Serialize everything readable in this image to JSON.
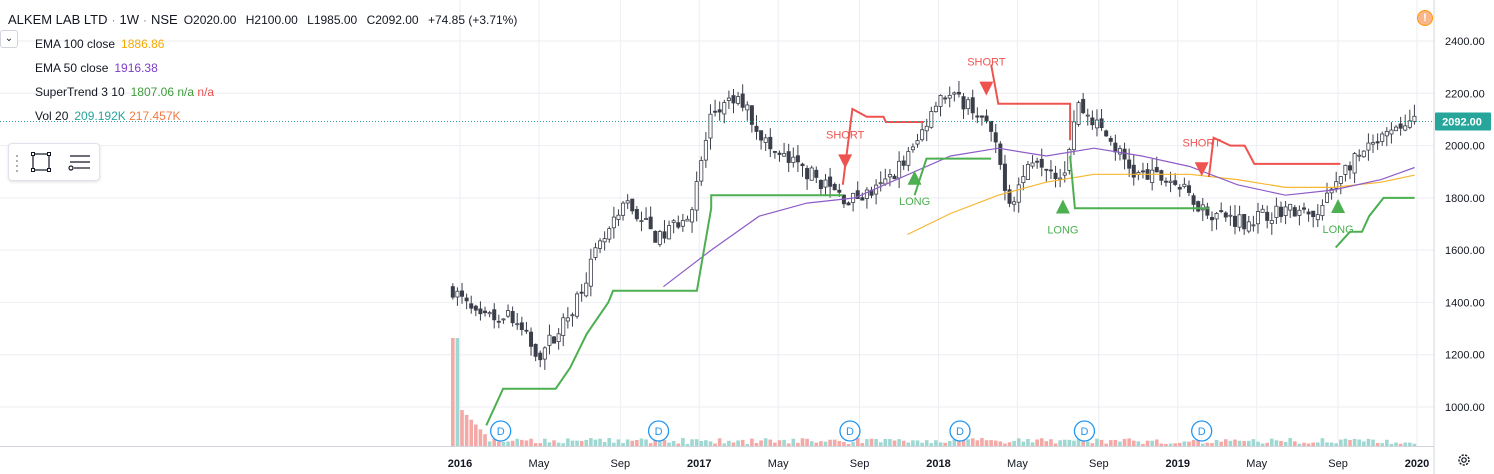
{
  "symbol": {
    "name": "ALKEM LAB LTD",
    "interval": "1W",
    "exchange": "NSE"
  },
  "ohlc": {
    "open": "O2020.00",
    "high": "H2100.00",
    "low": "L1985.00",
    "close": "C2092.00",
    "change": "+74.85 (+3.71%)"
  },
  "indicators": [
    {
      "name": "EMA 100 close",
      "v1": "1886.86",
      "v2": "",
      "v3": "",
      "c1": "#f7a900"
    },
    {
      "name": "EMA 50 close",
      "v1": "1916.38",
      "v2": "",
      "v3": "",
      "c1": "#7b3fc6"
    },
    {
      "name": "SuperTrend 3 10",
      "v1": "1807.06",
      "v2": "n/a",
      "v3": "n/a",
      "c1": "#3d9b3a",
      "c2": "#3d9b3a",
      "c3": "#e85050"
    },
    {
      "name": "Vol 20",
      "v1": "209.192K",
      "v2": "217.457K",
      "v3": "",
      "c1": "#26a69a",
      "c2": "#f07a45"
    }
  ],
  "price_tag": "2092.00",
  "colors": {
    "up": "#26a69a",
    "down": "#ef5350",
    "candle": "#3b3f4a",
    "st_up": "#4caf50",
    "st_down": "#ef5350",
    "ema100": "#f7b731",
    "ema50": "#8e5cc8",
    "grid": "#eceef2",
    "vol_up": "#9fd8d2",
    "vol_down": "#f4a9a7",
    "events": "#2196f3"
  },
  "chart_data": {
    "type": "candlestick",
    "x_ticks": [
      "2016",
      "May",
      "Sep",
      "2017",
      "May",
      "Sep",
      "2018",
      "May",
      "Sep",
      "2019",
      "May",
      "Sep",
      "2020"
    ],
    "y_ticks": [
      "1000.00",
      "1200.00",
      "1400.00",
      "1600.00",
      "1800.00",
      "2000.00",
      "2200.00",
      "2400.00"
    ],
    "ylim": [
      860,
      2480
    ],
    "x_range_years": [
      2016.0,
      2020.0
    ],
    "last_price": 2092,
    "signals": [
      {
        "label": "SHORT",
        "t": 2017.61,
        "dir": "short"
      },
      {
        "label": "LONG",
        "t": 2017.9,
        "dir": "long"
      },
      {
        "label": "SHORT",
        "t": 2018.2,
        "dir": "short"
      },
      {
        "label": "LONG",
        "t": 2018.52,
        "dir": "long"
      },
      {
        "label": "SHORT",
        "t": 2019.1,
        "dir": "short"
      },
      {
        "label": "LONG",
        "t": 2019.67,
        "dir": "long"
      }
    ],
    "events": [
      {
        "label": "D",
        "t": 2016.17
      },
      {
        "label": "D",
        "t": 2016.83
      },
      {
        "label": "D",
        "t": 2017.63
      },
      {
        "label": "D",
        "t": 2018.09
      },
      {
        "label": "D",
        "t": 2018.61
      },
      {
        "label": "D",
        "t": 2019.1
      }
    ],
    "key_prices": [
      {
        "t": 2015.97,
        "p": 1450
      },
      {
        "t": 2016.08,
        "p": 1330
      },
      {
        "t": 2016.2,
        "p": 1360
      },
      {
        "t": 2016.33,
        "p": 1200
      },
      {
        "t": 2016.45,
        "p": 1340
      },
      {
        "t": 2016.57,
        "p": 1590
      },
      {
        "t": 2016.7,
        "p": 1780
      },
      {
        "t": 2016.83,
        "p": 1640
      },
      {
        "t": 2016.97,
        "p": 1760
      },
      {
        "t": 2017.05,
        "p": 2120
      },
      {
        "t": 2017.17,
        "p": 2180
      },
      {
        "t": 2017.3,
        "p": 1980
      },
      {
        "t": 2017.45,
        "p": 1900
      },
      {
        "t": 2017.62,
        "p": 1790
      },
      {
        "t": 2017.75,
        "p": 1830
      },
      {
        "t": 2017.9,
        "p": 1990
      },
      {
        "t": 2018.0,
        "p": 2200
      },
      {
        "t": 2018.13,
        "p": 2160
      },
      {
        "t": 2018.22,
        "p": 2050
      },
      {
        "t": 2018.3,
        "p": 1780
      },
      {
        "t": 2018.4,
        "p": 1970
      },
      {
        "t": 2018.52,
        "p": 1880
      },
      {
        "t": 2018.58,
        "p": 2160
      },
      {
        "t": 2018.7,
        "p": 2040
      },
      {
        "t": 2018.82,
        "p": 1890
      },
      {
        "t": 2018.97,
        "p": 1870
      },
      {
        "t": 2019.12,
        "p": 1750
      },
      {
        "t": 2019.28,
        "p": 1710
      },
      {
        "t": 2019.45,
        "p": 1760
      },
      {
        "t": 2019.58,
        "p": 1720
      },
      {
        "t": 2019.68,
        "p": 1900
      },
      {
        "t": 2019.82,
        "p": 2000
      },
      {
        "t": 2019.95,
        "p": 2080
      },
      {
        "t": 2019.99,
        "p": 2092
      }
    ],
    "ema50": [
      {
        "t": 2016.85,
        "p": 1460
      },
      {
        "t": 2017.05,
        "p": 1600
      },
      {
        "t": 2017.25,
        "p": 1730
      },
      {
        "t": 2017.45,
        "p": 1780
      },
      {
        "t": 2017.65,
        "p": 1800
      },
      {
        "t": 2017.85,
        "p": 1880
      },
      {
        "t": 2018.05,
        "p": 1960
      },
      {
        "t": 2018.25,
        "p": 1990
      },
      {
        "t": 2018.45,
        "p": 1960
      },
      {
        "t": 2018.65,
        "p": 1990
      },
      {
        "t": 2018.85,
        "p": 1960
      },
      {
        "t": 2019.05,
        "p": 1920
      },
      {
        "t": 2019.25,
        "p": 1850
      },
      {
        "t": 2019.45,
        "p": 1810
      },
      {
        "t": 2019.65,
        "p": 1830
      },
      {
        "t": 2019.85,
        "p": 1870
      },
      {
        "t": 2019.99,
        "p": 1916
      }
    ],
    "ema100": [
      {
        "t": 2017.87,
        "p": 1660
      },
      {
        "t": 2018.05,
        "p": 1740
      },
      {
        "t": 2018.25,
        "p": 1810
      },
      {
        "t": 2018.45,
        "p": 1860
      },
      {
        "t": 2018.65,
        "p": 1890
      },
      {
        "t": 2018.85,
        "p": 1890
      },
      {
        "t": 2019.05,
        "p": 1890
      },
      {
        "t": 2019.25,
        "p": 1870
      },
      {
        "t": 2019.45,
        "p": 1840
      },
      {
        "t": 2019.65,
        "p": 1840
      },
      {
        "t": 2019.85,
        "p": 1860
      },
      {
        "t": 2019.99,
        "p": 1887
      }
    ],
    "supertrend": [
      {
        "dir": "up",
        "pts": [
          [
            2016.11,
            930
          ],
          [
            2016.18,
            1070
          ],
          [
            2016.4,
            1070
          ],
          [
            2016.46,
            1150
          ],
          [
            2016.53,
            1280
          ],
          [
            2016.62,
            1400
          ],
          [
            2016.64,
            1445
          ],
          [
            2016.99,
            1445
          ],
          [
            2017.05,
            1760
          ],
          [
            2017.05,
            1810
          ],
          [
            2017.6,
            1810
          ]
        ]
      },
      {
        "dir": "down",
        "pts": [
          [
            2017.6,
            1850
          ],
          [
            2017.64,
            2140
          ],
          [
            2017.7,
            2110
          ],
          [
            2017.77,
            2110
          ],
          [
            2017.78,
            2090
          ],
          [
            2017.94,
            2090
          ]
        ]
      },
      {
        "dir": "up",
        "pts": [
          [
            2017.9,
            1810
          ],
          [
            2017.95,
            1950
          ],
          [
            2018.22,
            1950
          ]
        ]
      },
      {
        "dir": "down",
        "pts": [
          [
            2018.22,
            2310
          ],
          [
            2018.25,
            2160
          ],
          [
            2018.55,
            2160
          ],
          [
            2018.55,
            2020
          ]
        ]
      },
      {
        "dir": "up",
        "pts": [
          [
            2018.55,
            1960
          ],
          [
            2018.57,
            1760
          ],
          [
            2019.13,
            1760
          ]
        ]
      },
      {
        "dir": "down",
        "pts": [
          [
            2019.13,
            1880
          ],
          [
            2019.15,
            2030
          ],
          [
            2019.22,
            2000
          ],
          [
            2019.28,
            2000
          ],
          [
            2019.32,
            1930
          ],
          [
            2019.68,
            1930
          ]
        ]
      },
      {
        "dir": "up",
        "pts": [
          [
            2019.66,
            1610
          ],
          [
            2019.72,
            1670
          ],
          [
            2019.77,
            1670
          ],
          [
            2019.8,
            1730
          ],
          [
            2019.86,
            1800
          ],
          [
            2019.99,
            1800
          ]
        ]
      }
    ]
  }
}
